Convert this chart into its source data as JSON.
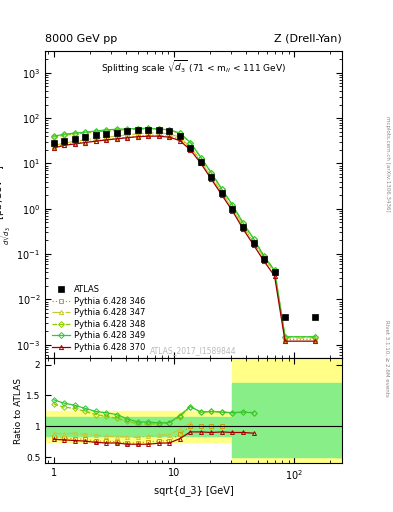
{
  "title_left": "8000 GeV pp",
  "title_right": "Z (Drell-Yan)",
  "watermark": "ATLAS_2017_I1589844",
  "atlas_x": [
    1.0,
    1.22,
    1.5,
    1.83,
    2.24,
    2.74,
    3.35,
    4.1,
    5.01,
    6.13,
    7.5,
    9.17,
    11.2,
    13.7,
    16.8,
    20.5,
    25.1,
    30.7,
    37.6,
    46.0,
    56.2,
    68.8,
    84.1,
    150.0
  ],
  "atlas_y": [
    28,
    32,
    35,
    38,
    42,
    45,
    48,
    52,
    55,
    56,
    55,
    52,
    40,
    22,
    11,
    5.0,
    2.2,
    1.0,
    0.4,
    0.18,
    0.08,
    0.04,
    0.004,
    0.004
  ],
  "py346_x": [
    1.0,
    1.22,
    1.5,
    1.83,
    2.24,
    2.74,
    3.35,
    4.1,
    5.01,
    6.13,
    7.5,
    9.17,
    11.2,
    13.7,
    16.8,
    20.5,
    25.1,
    30.7,
    37.6,
    46.0,
    56.2,
    68.8,
    84.1,
    150.0
  ],
  "py346_y": [
    23,
    26,
    28,
    30,
    32,
    34,
    36,
    38,
    40,
    42,
    42,
    40,
    35,
    22,
    11.0,
    5.0,
    2.2,
    1.0,
    0.4,
    0.18,
    0.08,
    0.04,
    0.0013,
    0.0013
  ],
  "py347_x": [
    1.0,
    1.22,
    1.5,
    1.83,
    2.24,
    2.74,
    3.35,
    4.1,
    5.01,
    6.13,
    7.5,
    9.17,
    11.2,
    13.7,
    16.8,
    20.5,
    25.1,
    30.7,
    37.6,
    46.0,
    56.2,
    68.8,
    84.1,
    150.0
  ],
  "py347_y": [
    25,
    28,
    31,
    33,
    36,
    38,
    40,
    43,
    45,
    47,
    47,
    45,
    38,
    23,
    11.5,
    5.2,
    2.3,
    1.05,
    0.42,
    0.19,
    0.085,
    0.04,
    0.0014,
    0.0014
  ],
  "py348_x": [
    1.0,
    1.22,
    1.5,
    1.83,
    2.24,
    2.74,
    3.35,
    4.1,
    5.01,
    6.13,
    7.5,
    9.17,
    11.2,
    13.7,
    16.8,
    20.5,
    25.1,
    30.7,
    37.6,
    46.0,
    56.2,
    68.8,
    84.1,
    150.0
  ],
  "py348_y": [
    38,
    42,
    45,
    47,
    50,
    52,
    54,
    56,
    57,
    58,
    57,
    55,
    46,
    29,
    13.5,
    6.2,
    2.7,
    1.22,
    0.49,
    0.22,
    0.09,
    0.044,
    0.0015,
    0.0015
  ],
  "py349_x": [
    1.0,
    1.22,
    1.5,
    1.83,
    2.24,
    2.74,
    3.35,
    4.1,
    5.01,
    6.13,
    7.5,
    9.17,
    11.2,
    13.7,
    16.8,
    20.5,
    25.1,
    30.7,
    37.6,
    46.0,
    56.2,
    68.8,
    84.1,
    150.0
  ],
  "py349_y": [
    40,
    44,
    47,
    49,
    52,
    55,
    57,
    58,
    59,
    60,
    58,
    55,
    47,
    29,
    13.5,
    6.2,
    2.7,
    1.22,
    0.49,
    0.22,
    0.09,
    0.044,
    0.0015,
    0.0015
  ],
  "py370_x": [
    1.0,
    1.22,
    1.5,
    1.83,
    2.24,
    2.74,
    3.35,
    4.1,
    5.01,
    6.13,
    7.5,
    9.17,
    11.2,
    13.7,
    16.8,
    20.5,
    25.1,
    30.7,
    37.6,
    46.0,
    56.2,
    68.8,
    84.1,
    150.0
  ],
  "py370_y": [
    22,
    25,
    27,
    29,
    31,
    33,
    35,
    37,
    39,
    40,
    40,
    38,
    32,
    20,
    10.0,
    4.5,
    2.0,
    0.9,
    0.36,
    0.16,
    0.07,
    0.033,
    0.0012,
    0.0012
  ],
  "ratio_346_x": [
    1.0,
    1.22,
    1.5,
    1.83,
    2.24,
    2.74,
    3.35,
    4.1,
    5.01,
    6.13,
    7.5,
    9.17,
    11.2,
    13.7,
    16.8,
    20.5,
    25.1
  ],
  "ratio_346_y": [
    0.82,
    0.81,
    0.8,
    0.79,
    0.76,
    0.76,
    0.75,
    0.73,
    0.73,
    0.75,
    0.76,
    0.77,
    0.875,
    1.0,
    1.0,
    1.0,
    1.0
  ],
  "ratio_347_x": [
    1.0,
    1.22,
    1.5,
    1.83,
    2.24,
    2.74,
    3.35,
    4.1,
    5.01,
    6.13,
    7.5,
    9.17,
    11.2,
    13.7
  ],
  "ratio_347_y": [
    0.89,
    0.875,
    0.89,
    0.87,
    0.86,
    0.84,
    0.83,
    0.83,
    0.82,
    0.84,
    0.855,
    0.865,
    0.95,
    1.05
  ],
  "ratio_348_x": [
    1.0,
    1.22,
    1.5,
    1.83,
    2.24,
    2.74,
    3.35,
    4.1,
    5.01,
    6.13,
    7.5,
    9.17,
    11.2,
    13.7,
    16.8,
    20.5,
    25.1,
    30.7,
    37.6,
    46.0
  ],
  "ratio_348_y": [
    1.36,
    1.31,
    1.29,
    1.24,
    1.19,
    1.16,
    1.13,
    1.08,
    1.04,
    1.04,
    1.04,
    1.06,
    1.15,
    1.32,
    1.23,
    1.24,
    1.23,
    1.22,
    1.23,
    1.22
  ],
  "ratio_349_x": [
    1.0,
    1.22,
    1.5,
    1.83,
    2.24,
    2.74,
    3.35,
    4.1,
    5.01,
    6.13,
    7.5,
    9.17,
    11.2,
    13.7,
    16.8,
    20.5,
    25.1,
    30.7,
    37.6,
    46.0
  ],
  "ratio_349_y": [
    1.43,
    1.375,
    1.34,
    1.29,
    1.24,
    1.22,
    1.19,
    1.12,
    1.07,
    1.07,
    1.055,
    1.06,
    1.175,
    1.32,
    1.23,
    1.24,
    1.23,
    1.22,
    1.23,
    1.22
  ],
  "ratio_370_x": [
    1.0,
    1.22,
    1.5,
    1.83,
    2.24,
    2.74,
    3.35,
    4.1,
    5.01,
    6.13,
    7.5,
    9.17,
    11.2,
    13.7,
    16.8,
    20.5,
    25.1,
    30.7,
    37.6,
    46.0
  ],
  "ratio_370_y": [
    0.79,
    0.78,
    0.77,
    0.76,
    0.74,
    0.73,
    0.73,
    0.71,
    0.71,
    0.71,
    0.727,
    0.731,
    0.8,
    0.909,
    0.909,
    0.9,
    0.909,
    0.9,
    0.9,
    0.889
  ],
  "colors": {
    "atlas": "#000000",
    "py346": "#c8a000",
    "py347": "#c8c832",
    "py348": "#90c800",
    "py349": "#32c832",
    "py370": "#a00000"
  },
  "ylim_main": [
    0.0005,
    3000.0
  ],
  "ylim_ratio": [
    0.4,
    2.1
  ],
  "xlim": [
    0.85,
    250.0
  ],
  "band_x1": 0.85,
  "band_x2": 30.7,
  "band_last_x2": 250.0,
  "band_yellow_lo": 0.75,
  "band_yellow_hi": 1.25,
  "band_green_lo": 0.85,
  "band_green_hi": 1.15,
  "last_yellow_lo": 0.4,
  "last_yellow_hi": 2.1,
  "last_green_lo": 0.5,
  "last_green_hi": 1.7
}
